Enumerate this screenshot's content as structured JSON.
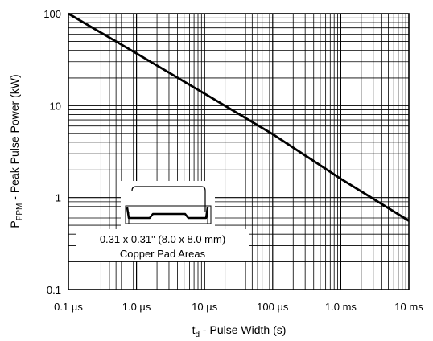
{
  "chart_data": {
    "type": "line",
    "xscale": "log",
    "yscale": "log",
    "xlim_seconds": [
      1e-07,
      0.01
    ],
    "ylim": [
      0.1,
      100
    ],
    "grid": true,
    "xlabel_main": "t",
    "xlabel_sub": "d",
    "xlabel_rest": " - Pulse Width (s)",
    "ylabel_main": "P",
    "ylabel_sub": "PPM",
    "ylabel_rest": " - Peak Pulse Power (kW)",
    "x_ticks": [
      {
        "value": 1e-07,
        "label": "0.1 µs"
      },
      {
        "value": 1e-06,
        "label": "1.0 µs"
      },
      {
        "value": 1e-05,
        "label": "10 µs"
      },
      {
        "value": 0.0001,
        "label": "100 µs"
      },
      {
        "value": 0.001,
        "label": "1.0 ms"
      },
      {
        "value": 0.01,
        "label": "10 ms"
      }
    ],
    "y_ticks": [
      {
        "value": 0.1,
        "label": "0.1"
      },
      {
        "value": 1,
        "label": "1"
      },
      {
        "value": 10,
        "label": "10"
      },
      {
        "value": 100,
        "label": "100"
      }
    ],
    "series": [
      {
        "x": [
          1e-07,
          1e-06,
          1e-05,
          0.0001,
          0.001,
          0.01
        ],
        "y": [
          100,
          37,
          13.5,
          4.9,
          1.6,
          0.56
        ]
      }
    ],
    "annotation": {
      "line1": "0.31 x 0.31\" (8.0 x 8.0 mm)",
      "line2": "Copper Pad Areas"
    }
  }
}
